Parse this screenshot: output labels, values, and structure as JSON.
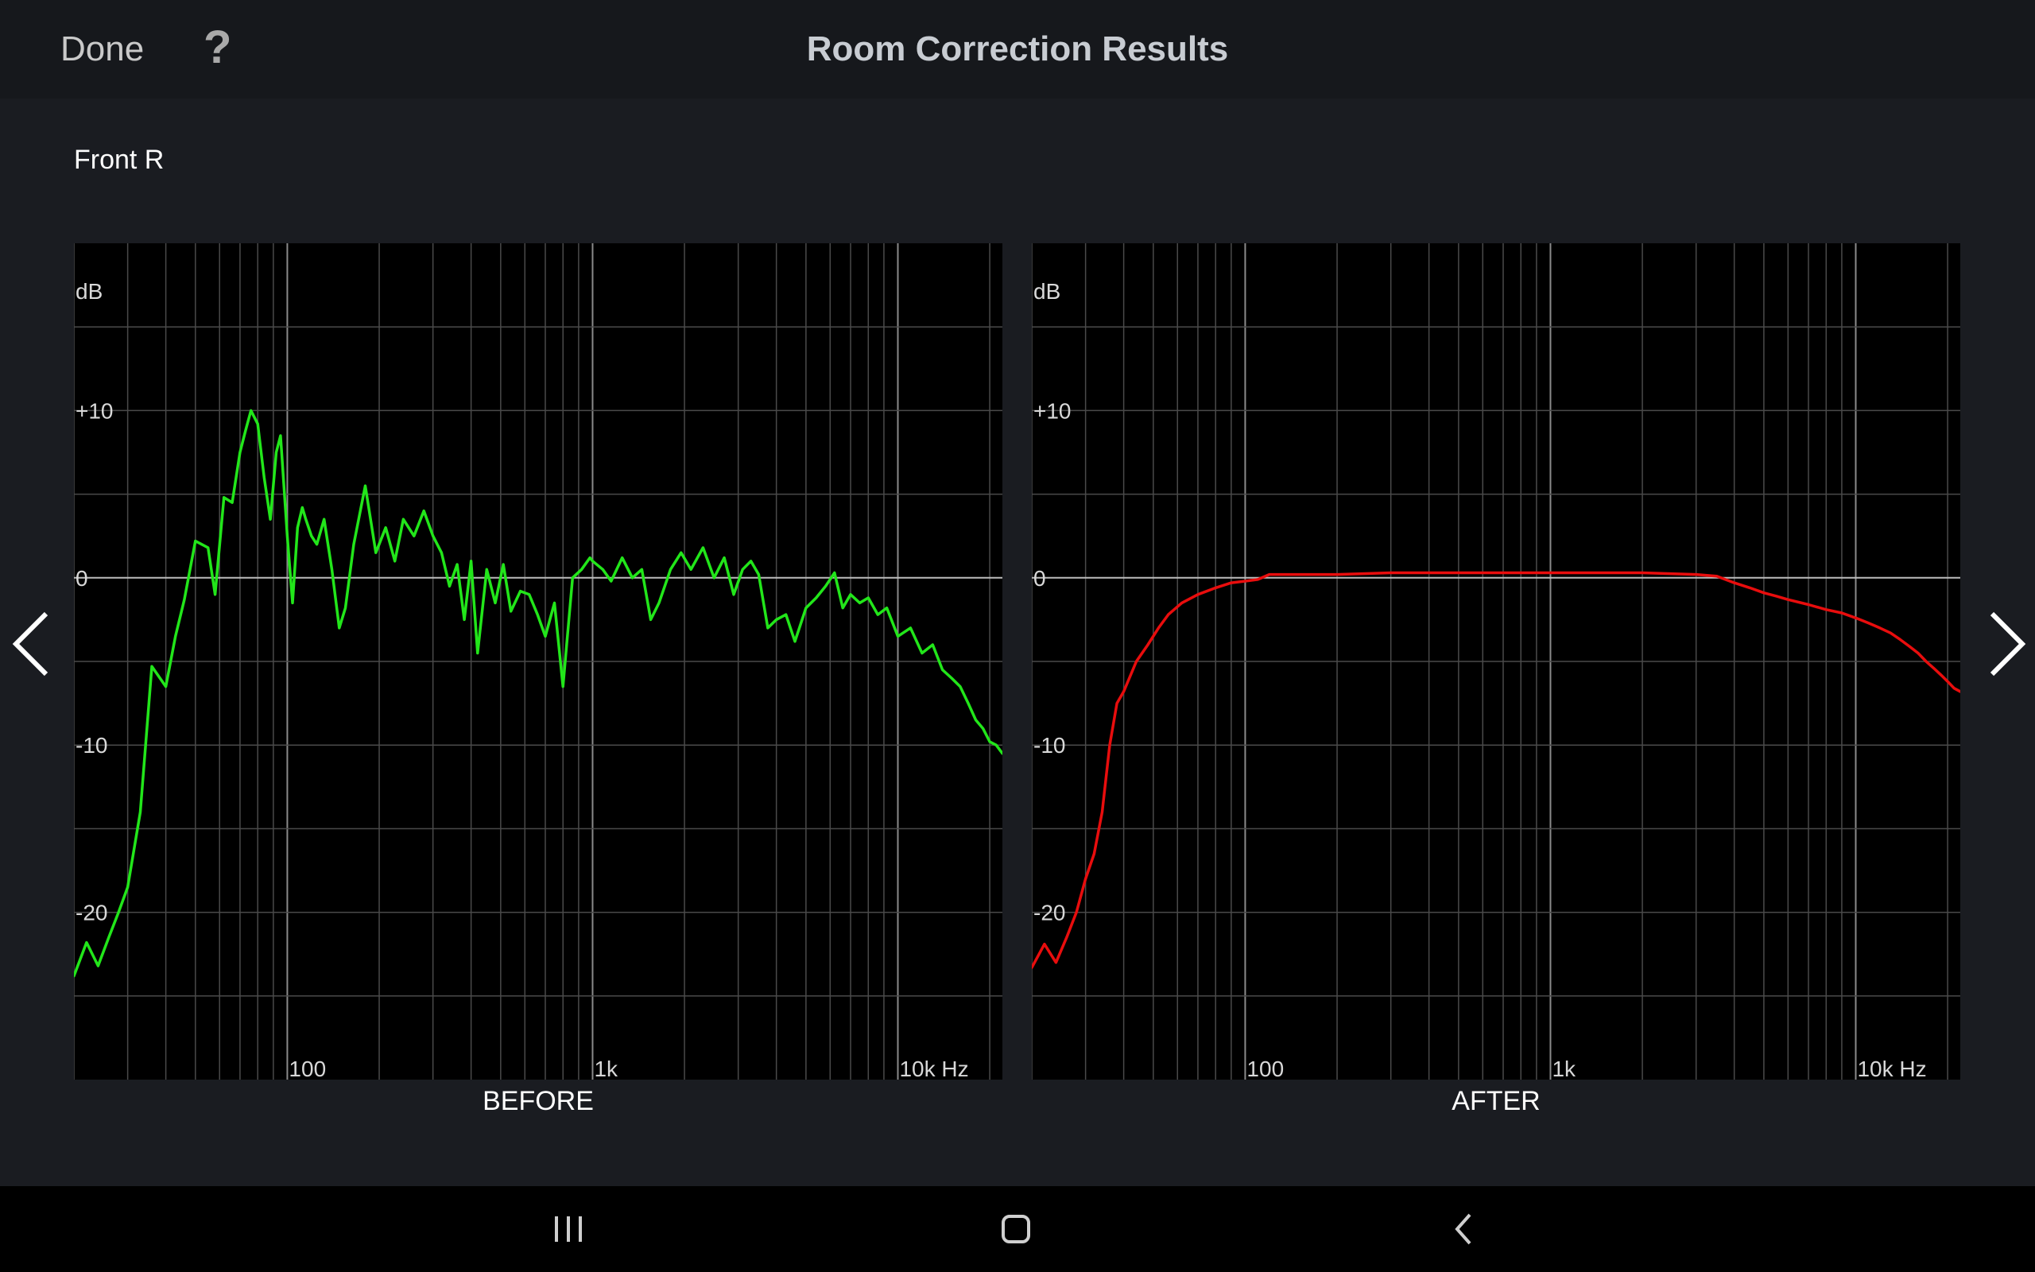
{
  "header": {
    "done_label": "Done",
    "help_label": "?",
    "title": "Room Correction Results"
  },
  "channel": "Front R",
  "colors": {
    "background": "#1a1c21",
    "plot_background": "#000000",
    "before_curve": "#22e61a",
    "after_curve": "#e80d0d",
    "grid": "#5a5a5a"
  },
  "icons": {
    "prev": "chevron-left-icon",
    "next": "chevron-right-icon",
    "recents": "recents-icon",
    "home": "home-icon",
    "back": "back-icon"
  },
  "chart_data": [
    {
      "type": "line",
      "xscale": "log",
      "xlim": [
        20,
        22000
      ],
      "ylim": [
        -30,
        20
      ],
      "ylabel": "dB",
      "ytick_labels": [
        "+10",
        "0",
        "-10",
        "-20"
      ],
      "ytick_values": [
        10,
        0,
        -10,
        -20
      ],
      "xtick_labels": [
        "100",
        "1k",
        "10k Hz"
      ],
      "xtick_values": [
        100,
        1000,
        10000
      ],
      "grid": true,
      "caption": "BEFORE",
      "series": [
        {
          "x": [
            20,
            22,
            24,
            26,
            28,
            30,
            33,
            36,
            40,
            43,
            46,
            50,
            55,
            58,
            62,
            66,
            70,
            73,
            76,
            80,
            84,
            88,
            92,
            95,
            100,
            104,
            108,
            112,
            115,
            120,
            125,
            132,
            140,
            148,
            155,
            165,
            180,
            195,
            210,
            225,
            240,
            260,
            280,
            300,
            320,
            340,
            360,
            380,
            400,
            420,
            450,
            480,
            510,
            540,
            580,
            620,
            660,
            700,
            750,
            800,
            860,
            920,
            980,
            1000,
            1080,
            1150,
            1250,
            1350,
            1450,
            1550,
            1650,
            1800,
            1950,
            2100,
            2300,
            2500,
            2700,
            2900,
            3100,
            3300,
            3500,
            3750,
            4000,
            4300,
            4600,
            5000,
            5400,
            5800,
            6200,
            6600,
            7000,
            7500,
            8000,
            8600,
            9200,
            10000,
            11000,
            12000,
            13000,
            14000,
            15000,
            16000,
            17000,
            18000,
            19000,
            20000,
            21000,
            22000
          ],
          "values": [
            -23.8,
            -21.8,
            -23.2,
            -21.5,
            -20,
            -18.5,
            -14,
            -5.3,
            -6.5,
            -3.5,
            -1.3,
            2.2,
            1.8,
            -1,
            4.8,
            4.5,
            7.5,
            8.8,
            10,
            9.2,
            6,
            3.5,
            7.5,
            8.5,
            2.5,
            -1.5,
            3,
            4.2,
            3.5,
            2.5,
            2,
            3.5,
            0.5,
            -3,
            -1.8,
            2,
            5.5,
            1.5,
            3,
            1,
            3.5,
            2.5,
            4,
            2.5,
            1.5,
            -0.5,
            0.8,
            -2.5,
            1,
            -4.5,
            0.5,
            -1.5,
            0.8,
            -2,
            -0.8,
            -1,
            -2.2,
            -3.5,
            -1.5,
            -6.5,
            0,
            0.5,
            1.2,
            1,
            0.5,
            -0.2,
            1.2,
            0,
            0.5,
            -2.5,
            -1.5,
            0.5,
            1.5,
            0.5,
            1.8,
            0,
            1.2,
            -1,
            0.5,
            1,
            0.2,
            -3,
            -2.5,
            -2.2,
            -3.8,
            -1.8,
            -1.2,
            -0.5,
            0.3,
            -1.8,
            -1,
            -1.5,
            -1.2,
            -2.2,
            -1.8,
            -3.5,
            -3,
            -4.5,
            -4,
            -5.5,
            -6,
            -6.5,
            -7.5,
            -8.5,
            -9,
            -9.8,
            -10,
            -10.5
          ]
        }
      ]
    },
    {
      "type": "line",
      "xscale": "log",
      "xlim": [
        20,
        22000
      ],
      "ylim": [
        -30,
        20
      ],
      "ylabel": "dB",
      "ytick_labels": [
        "+10",
        "0",
        "-10",
        "-20"
      ],
      "ytick_values": [
        10,
        0,
        -10,
        -20
      ],
      "xtick_labels": [
        "100",
        "1k",
        "10k Hz"
      ],
      "xtick_values": [
        100,
        1000,
        10000
      ],
      "grid": true,
      "caption": "AFTER",
      "series": [
        {
          "x": [
            20,
            22,
            24,
            26,
            28,
            30,
            32,
            34,
            36,
            38,
            40,
            44,
            48,
            52,
            56,
            62,
            70,
            80,
            90,
            100,
            110,
            120,
            140,
            170,
            200,
            300,
            500,
            1000,
            2000,
            3000,
            3500,
            4000,
            4500,
            5000,
            5500,
            6000,
            7000,
            8000,
            9000,
            10000,
            11000,
            12000,
            13000,
            14000,
            15000,
            16000,
            17000,
            18000,
            19000,
            20000,
            21000,
            22000
          ],
          "values": [
            -23.3,
            -21.9,
            -23.0,
            -21.5,
            -20.0,
            -18.0,
            -16.5,
            -14.0,
            -10.0,
            -7.5,
            -6.8,
            -5.0,
            -4.0,
            -3.0,
            -2.2,
            -1.5,
            -1.0,
            -0.6,
            -0.3,
            -0.2,
            -0.1,
            0.2,
            0.2,
            0.2,
            0.2,
            0.3,
            0.3,
            0.3,
            0.3,
            0.2,
            0.1,
            -0.3,
            -0.6,
            -0.9,
            -1.1,
            -1.3,
            -1.6,
            -1.9,
            -2.1,
            -2.4,
            -2.7,
            -3.0,
            -3.3,
            -3.7,
            -4.1,
            -4.5,
            -5.0,
            -5.4,
            -5.8,
            -6.2,
            -6.6,
            -6.8
          ]
        }
      ]
    }
  ]
}
